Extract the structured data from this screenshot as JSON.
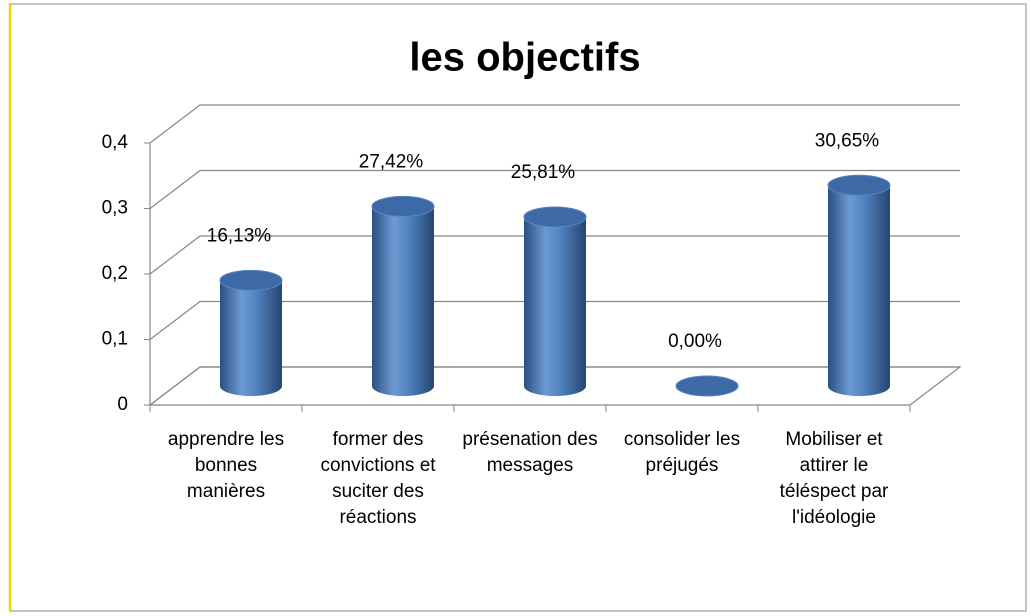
{
  "chart_data": {
    "type": "cylinder-bar",
    "title": "les objectifs",
    "categories": [
      "apprendre les bonnes manières",
      "former des convictions et suciter des réactions",
      "présenation des messages",
      "consolider les préjugés",
      "Mobiliser et attirer le téléspect par l'idéologie"
    ],
    "values": [
      0.1613,
      0.2742,
      0.2581,
      0,
      0.3065
    ],
    "value_labels": [
      "16,13%",
      "27,42%",
      "25,81%",
      "0,00%",
      "30,65%"
    ],
    "color": "#4f81bd",
    "ylim": [
      0,
      0.4
    ],
    "yticks": [
      0,
      {
        "value": 0.1,
        "label": "0,1"
      },
      {
        "value": 0.2,
        "label": "0,2"
      },
      {
        "value": 0.3,
        "label": "0,3"
      },
      {
        "value": 0.4,
        "label": "0,4"
      }
    ],
    "grid": true
  }
}
